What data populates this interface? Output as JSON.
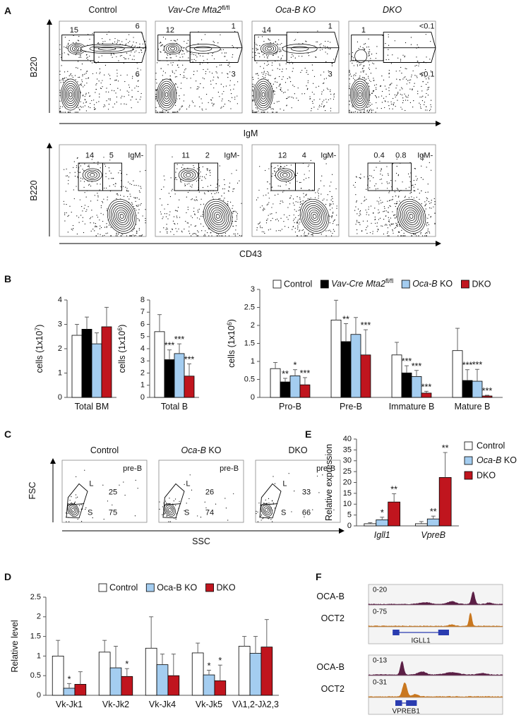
{
  "panel_labels": [
    "A",
    "B",
    "C",
    "D",
    "E",
    "F"
  ],
  "panel_a": {
    "row1": {
      "y_label": "B220",
      "x_label": "IgM",
      "plots": [
        {
          "title": "Control",
          "gates": [
            15,
            6,
            6
          ]
        },
        {
          "title": [
            {
              "t": "Vav-Cre Mta2",
              "i": true
            },
            {
              "t": "fl/fl",
              "sup": true
            }
          ],
          "gates": [
            12,
            1,
            3
          ]
        },
        {
          "title": [
            {
              "t": "Oca-B KO",
              "i": true
            }
          ],
          "gates": [
            14,
            1,
            3
          ]
        },
        {
          "title": [
            {
              "t": "DKO",
              "i": true
            }
          ],
          "gates": [
            1,
            "<0.1",
            "<0.1"
          ]
        }
      ]
    },
    "row2": {
      "y_label": "B220",
      "x_label": "CD43",
      "plots": [
        {
          "gates": [
            14,
            5
          ],
          "tag": "IgM-"
        },
        {
          "gates": [
            11,
            2
          ],
          "tag": "IgM-"
        },
        {
          "gates": [
            12,
            4
          ],
          "tag": "IgM-"
        },
        {
          "gates": [
            0.4,
            0.8
          ],
          "tag": "IgM-"
        }
      ]
    }
  },
  "panel_c": {
    "y_label": "FSC",
    "x_label": "SSC",
    "plots": [
      {
        "title": "Control",
        "tag": "pre-B",
        "gates": [
          {
            "name": "L",
            "value": 25
          },
          {
            "name": "S",
            "value": 75
          }
        ]
      },
      {
        "title": [
          {
            "t": "Oca-B",
            "i": true
          },
          {
            "t": " KO"
          }
        ],
        "tag": "pre-B",
        "gates": [
          {
            "name": "L",
            "value": 26
          },
          {
            "name": "S",
            "value": 74
          }
        ]
      },
      {
        "title": "DKO",
        "tag": "pre-B",
        "gates": [
          {
            "name": "L",
            "value": 33
          },
          {
            "name": "S",
            "value": 66
          }
        ]
      }
    ]
  },
  "panel_f": {
    "groups": [
      {
        "tracks": [
          {
            "name": "OCA-B",
            "range": "0-20",
            "color": "#5b1f45"
          },
          {
            "name": "OCT2",
            "range": "0-75",
            "color": "#c9771e"
          }
        ],
        "gene": "IGLL1"
      },
      {
        "tracks": [
          {
            "name": "OCA-B",
            "range": "0-13",
            "color": "#5b1f45"
          },
          {
            "name": "OCT2",
            "range": "0-31",
            "color": "#c9771e"
          }
        ],
        "gene": "VPREB1"
      }
    ]
  },
  "chart_data": [
    {
      "type": "bar",
      "y_label": [
        {
          "t": "cells (1x10"
        },
        {
          "t": "7",
          "sup": true
        },
        {
          "t": ")"
        }
      ],
      "categories": [
        "Total BM"
      ],
      "ylim": [
        0,
        4
      ],
      "yticks": [
        0,
        1,
        2,
        3,
        4
      ],
      "series": [
        {
          "color": "#ffffff",
          "values": [
            2.55
          ],
          "errors": [
            0.45
          ]
        },
        {
          "color": "#000000",
          "values": [
            2.8
          ],
          "errors": [
            0.5
          ]
        },
        {
          "color": "#a4cdf0",
          "values": [
            2.2
          ],
          "errors": [
            0.45
          ]
        },
        {
          "color": "#c0151e",
          "values": [
            2.9
          ],
          "errors": [
            0.8
          ]
        }
      ]
    },
    {
      "type": "bar",
      "y_label": [
        {
          "t": "cells (1x10"
        },
        {
          "t": "6",
          "sup": true
        },
        {
          "t": ")"
        }
      ],
      "categories": [
        "Total B"
      ],
      "ylim": [
        0,
        8
      ],
      "yticks": [
        0,
        1,
        2,
        3,
        4,
        5,
        6,
        7,
        8
      ],
      "series": [
        {
          "color": "#ffffff",
          "values": [
            5.4
          ],
          "errors": [
            1.4
          ]
        },
        {
          "color": "#000000",
          "values": [
            3.1
          ],
          "errors": [
            0.8
          ],
          "stars": [
            "***"
          ]
        },
        {
          "color": "#a4cdf0",
          "values": [
            3.6
          ],
          "errors": [
            0.8
          ],
          "stars": [
            "***"
          ]
        },
        {
          "color": "#c0151e",
          "values": [
            1.75
          ],
          "errors": [
            1.0
          ],
          "stars": [
            "***"
          ]
        }
      ]
    },
    {
      "type": "bar",
      "y_label": [
        {
          "t": "cells (1x10"
        },
        {
          "t": "6",
          "sup": true
        },
        {
          "t": ")"
        }
      ],
      "categories": [
        "Pro-B",
        "Pre-B",
        "Immature B",
        "Mature B"
      ],
      "ylim": [
        0,
        3
      ],
      "yticks": [
        0,
        0.5,
        1,
        1.5,
        2,
        2.5,
        3
      ],
      "legend": "top",
      "series": [
        {
          "name": "Control",
          "color": "#ffffff",
          "values": [
            0.8,
            2.15,
            1.18,
            1.3
          ],
          "errors": [
            0.17,
            0.55,
            0.35,
            0.62
          ]
        },
        {
          "name": [
            {
              "t": "Vav-Cre Mta2",
              "i": true
            },
            {
              "t": "fl/fl",
              "sup": true
            }
          ],
          "color": "#000000",
          "values": [
            0.43,
            1.55,
            0.68,
            0.47
          ],
          "errors": [
            0.1,
            0.5,
            0.2,
            0.3
          ],
          "stars": [
            "**",
            "**",
            "***",
            "***"
          ]
        },
        {
          "name": [
            {
              "t": "Oca-B",
              "i": true
            },
            {
              "t": " KO"
            }
          ],
          "color": "#a4cdf0",
          "values": [
            0.6,
            1.75,
            0.58,
            0.45
          ],
          "errors": [
            0.17,
            0.47,
            0.17,
            0.33
          ],
          "stars": [
            "*",
            null,
            "***",
            "***"
          ]
        },
        {
          "name": "DKO",
          "color": "#c0151e",
          "values": [
            0.35,
            1.18,
            0.12,
            0.04
          ],
          "errors": [
            0.2,
            0.7,
            0.05,
            0.02
          ],
          "stars": [
            "***",
            "***",
            "***",
            "***"
          ]
        }
      ]
    },
    {
      "type": "bar",
      "y_label": "Relative level",
      "categories": [
        "Vk-Jk1",
        "Vk-Jk2",
        "Vk-Jk4",
        "Vk-Jk5",
        "Vλ1,2-Jλ2,3"
      ],
      "ylim": [
        0,
        2.5
      ],
      "yticks": [
        0,
        0.5,
        1,
        1.5,
        2,
        2.5
      ],
      "legend": "top",
      "series": [
        {
          "name": "Control",
          "color": "#ffffff",
          "values": [
            1.0,
            1.1,
            1.2,
            1.08,
            1.25
          ],
          "errors": [
            0.4,
            0.3,
            0.8,
            0.25,
            0.25
          ]
        },
        {
          "name": "Oca-B KO",
          "color": "#a4cdf0",
          "values": [
            0.18,
            0.7,
            0.78,
            0.52,
            1.07
          ],
          "errors": [
            0.12,
            0.55,
            0.27,
            0.12,
            0.43
          ],
          "stars": [
            "*",
            null,
            null,
            "*",
            null
          ]
        },
        {
          "name": "DKO",
          "color": "#c0151e",
          "values": [
            0.28,
            0.48,
            0.5,
            0.37,
            1.23
          ],
          "errors": [
            0.32,
            0.2,
            0.55,
            0.4,
            0.7
          ],
          "stars": [
            null,
            "*",
            null,
            "*",
            null
          ]
        }
      ]
    },
    {
      "type": "bar",
      "y_label": "Relative expression",
      "categories": [
        "Igll1",
        "VpreB"
      ],
      "category_style": "italic",
      "ylim": [
        0,
        40
      ],
      "yticks": [
        0,
        5,
        10,
        15,
        20,
        25,
        30,
        35,
        40
      ],
      "legend": "right",
      "series": [
        {
          "name": "Control",
          "color": "#ffffff",
          "values": [
            1,
            1
          ],
          "errors": [
            0.5,
            1
          ]
        },
        {
          "name": [
            {
              "t": "Oca-B",
              "i": true
            },
            {
              "t": " KO"
            }
          ],
          "color": "#a4cdf0",
          "values": [
            2.8,
            3.2
          ],
          "errors": [
            1.2,
            1.3
          ],
          "stars": [
            "*",
            "**"
          ]
        },
        {
          "name": "DKO",
          "color": "#c0151e",
          "values": [
            11,
            22.3
          ],
          "errors": [
            3.8,
            11.5
          ],
          "stars": [
            "**",
            "**"
          ]
        }
      ]
    }
  ]
}
